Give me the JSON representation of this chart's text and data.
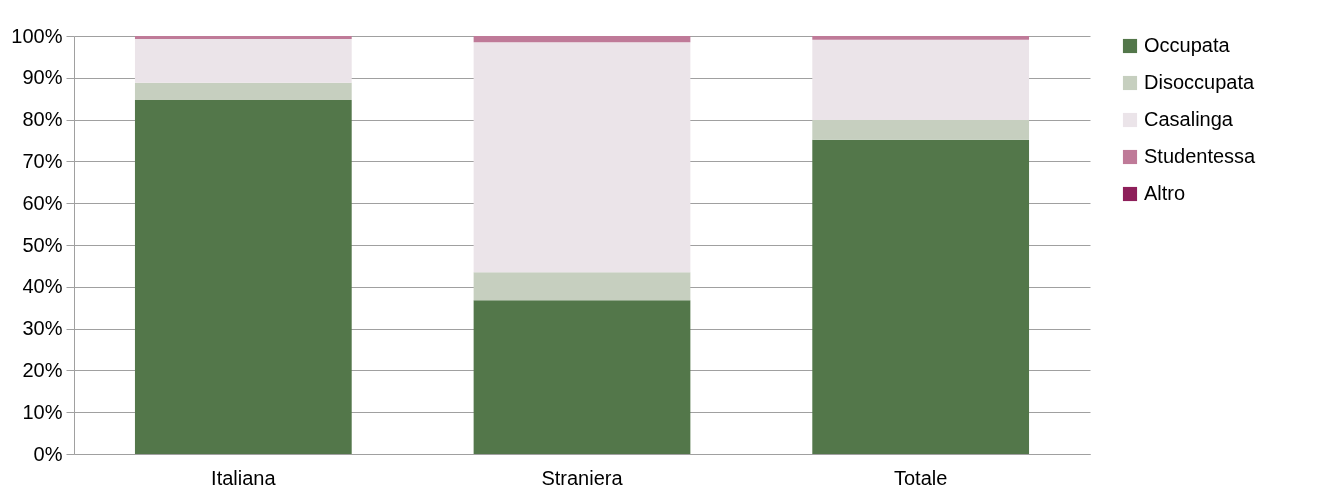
{
  "chart_data": {
    "type": "bar",
    "stacked": true,
    "categories": [
      "Italiana",
      "Straniera",
      "Totale"
    ],
    "series": [
      {
        "name": "Occupata",
        "color": "#53774a",
        "values": [
          84.7,
          36.8,
          75.2
        ]
      },
      {
        "name": "Disoccupata",
        "color": "#c6cfbf",
        "values": [
          4.1,
          6.7,
          4.7
        ]
      },
      {
        "name": "Casalinga",
        "color": "#ebe4e9",
        "values": [
          10.5,
          55.0,
          19.2
        ]
      },
      {
        "name": "Studentessa",
        "color": "#bf7a98",
        "values": [
          0.7,
          1.5,
          0.9
        ]
      },
      {
        "name": "Altro",
        "color": "#8e1f5a",
        "values": [
          0,
          0,
          0
        ]
      }
    ],
    "ylim": [
      0,
      100
    ],
    "yticks": [
      {
        "value": 0,
        "label": "0%"
      },
      {
        "value": 10,
        "label": "10%"
      },
      {
        "value": 20,
        "label": "20%"
      },
      {
        "value": 30,
        "label": "30%"
      },
      {
        "value": 40,
        "label": "40%"
      },
      {
        "value": 50,
        "label": "50%"
      },
      {
        "value": 60,
        "label": "60%"
      },
      {
        "value": 70,
        "label": "70%"
      },
      {
        "value": 80,
        "label": "80%"
      },
      {
        "value": 90,
        "label": "90%"
      },
      {
        "value": 100,
        "label": "100%"
      }
    ],
    "grid": "y",
    "legend": "right"
  }
}
